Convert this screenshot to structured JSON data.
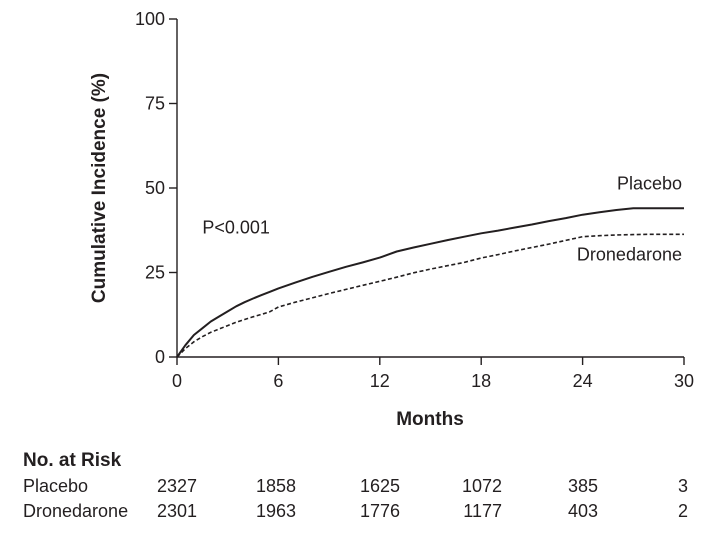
{
  "chart_data": {
    "type": "line",
    "title": "",
    "xlabel": "Months",
    "ylabel": "Cumulative Incidence (%)",
    "xlim": [
      0,
      30
    ],
    "ylim": [
      0,
      100
    ],
    "xticks": [
      0,
      6,
      12,
      18,
      24,
      30
    ],
    "yticks": [
      0,
      25,
      50,
      75,
      100
    ],
    "grid": false,
    "annotations": [
      {
        "text": "P<0.001",
        "x": 1.5,
        "y": 36.5
      }
    ],
    "series": [
      {
        "name": "Placebo",
        "style": "solid",
        "label_at": {
          "x": 30,
          "y": 49.5
        },
        "points": [
          [
            0,
            0
          ],
          [
            0.5,
            3.5
          ],
          [
            1,
            6.5
          ],
          [
            1.5,
            8.5
          ],
          [
            2,
            10.5
          ],
          [
            2.5,
            12
          ],
          [
            3,
            13.5
          ],
          [
            3.5,
            15
          ],
          [
            4,
            16.2
          ],
          [
            4.5,
            17.3
          ],
          [
            5,
            18.3
          ],
          [
            5.5,
            19.3
          ],
          [
            6,
            20.3
          ],
          [
            7,
            22
          ],
          [
            8,
            23.7
          ],
          [
            9,
            25.2
          ],
          [
            10,
            26.7
          ],
          [
            11,
            28
          ],
          [
            12,
            29.4
          ],
          [
            13,
            31.2
          ],
          [
            14,
            32.4
          ],
          [
            15,
            33.5
          ],
          [
            16,
            34.6
          ],
          [
            17,
            35.6
          ],
          [
            18,
            36.6
          ],
          [
            19,
            37.4
          ],
          [
            20,
            38.3
          ],
          [
            21,
            39.2
          ],
          [
            22,
            40.2
          ],
          [
            23,
            41.1
          ],
          [
            24,
            42.1
          ],
          [
            25,
            42.8
          ],
          [
            26,
            43.5
          ],
          [
            27,
            44
          ],
          [
            28,
            44
          ],
          [
            29,
            44
          ],
          [
            30,
            44
          ]
        ]
      },
      {
        "name": "Dronedarone",
        "style": "dashed",
        "label_at": {
          "x": 30,
          "y": 28.5
        },
        "points": [
          [
            0,
            0
          ],
          [
            0.5,
            2.5
          ],
          [
            1,
            4.5
          ],
          [
            1.5,
            6
          ],
          [
            2,
            7.3
          ],
          [
            2.5,
            8.3
          ],
          [
            3,
            9.3
          ],
          [
            3.5,
            10.3
          ],
          [
            4,
            11.1
          ],
          [
            4.5,
            11.9
          ],
          [
            5,
            12.6
          ],
          [
            5.5,
            13.4
          ],
          [
            6,
            14.8
          ],
          [
            7,
            16.2
          ],
          [
            8,
            17.5
          ],
          [
            9,
            18.8
          ],
          [
            10,
            20
          ],
          [
            11,
            21.2
          ],
          [
            12,
            22.4
          ],
          [
            13,
            23.6
          ],
          [
            14,
            24.9
          ],
          [
            15,
            26
          ],
          [
            16,
            27
          ],
          [
            17,
            28
          ],
          [
            18,
            29.3
          ],
          [
            19,
            30.3
          ],
          [
            20,
            31.4
          ],
          [
            21,
            32.4
          ],
          [
            22,
            33.4
          ],
          [
            23,
            34.5
          ],
          [
            24,
            35.6
          ],
          [
            25,
            35.9
          ],
          [
            26,
            36.1
          ],
          [
            27,
            36.2
          ],
          [
            28,
            36.3
          ],
          [
            29,
            36.3
          ],
          [
            30,
            36.3
          ]
        ]
      }
    ]
  },
  "risk_table": {
    "title": "No. at Risk",
    "rows": [
      {
        "label": "Placebo",
        "values": [
          "2327",
          "1858",
          "1625",
          "1072",
          "385",
          "3"
        ]
      },
      {
        "label": "Dronedarone",
        "values": [
          "2301",
          "1963",
          "1776",
          "1177",
          "403",
          "2"
        ]
      }
    ]
  }
}
